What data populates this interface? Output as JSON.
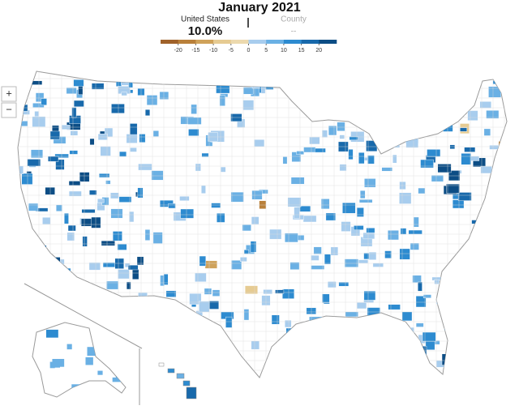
{
  "header": {
    "title": "January 2021",
    "us_label": "United States",
    "us_value": "10.0%",
    "county_label": "County",
    "county_value": "--"
  },
  "legend": {
    "ticks": [
      -20,
      -15,
      -10,
      -5,
      0,
      5,
      10,
      15,
      20
    ],
    "colors": [
      "#a0622a",
      "#b9803a",
      "#cfa25a",
      "#e6cb92",
      "#ecd9ae",
      "#a8cdee",
      "#6ab0e4",
      "#2d8bd0",
      "#1869ab",
      "#0c4d85"
    ]
  },
  "controls": {
    "zoom_in": "+",
    "zoom_out": "−"
  }
}
